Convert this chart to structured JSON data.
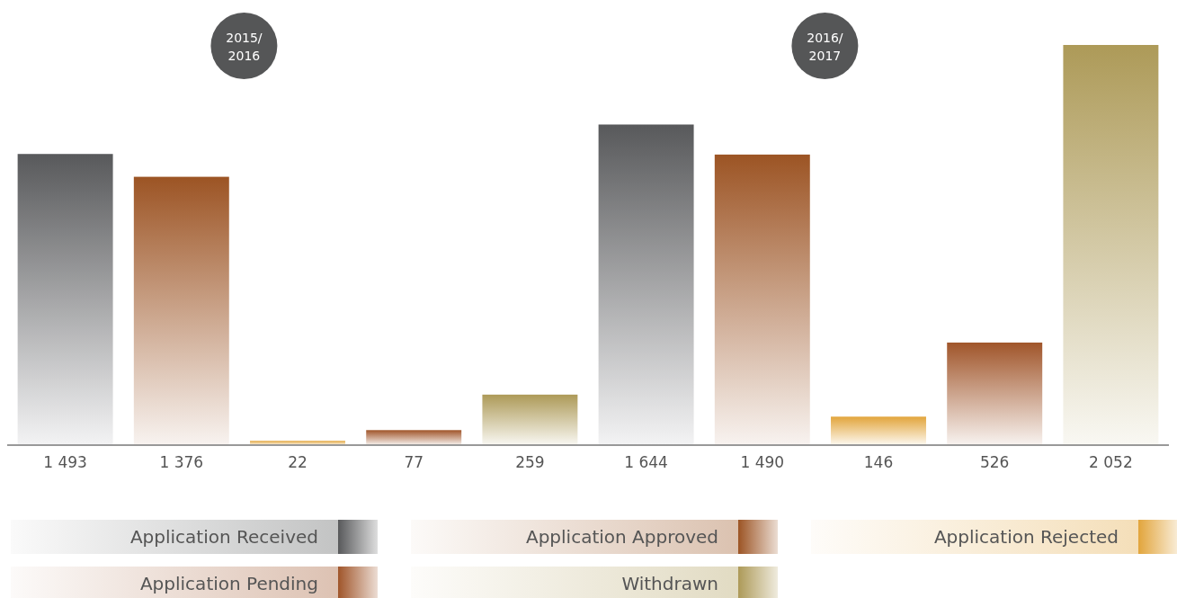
{
  "chart_data": {
    "type": "bar",
    "categories": [
      "2015/\n2016",
      "2016/\n2017"
    ],
    "series": [
      {
        "name": "Application Received",
        "color": "#58595b",
        "values": [
          1493,
          1644
        ],
        "value_labels": [
          "1 493",
          "1 644"
        ]
      },
      {
        "name": "Application Approved",
        "color": "#9c5424",
        "values": [
          1376,
          1490
        ],
        "value_labels": [
          "1 376",
          "1 490"
        ]
      },
      {
        "name": "Application Rejected",
        "color": "#e2a53c",
        "values": [
          22,
          146
        ],
        "value_labels": [
          "22",
          "146"
        ]
      },
      {
        "name": "Application Pending",
        "color": "#a0552a",
        "values": [
          77,
          526
        ],
        "value_labels": [
          "77",
          "526"
        ]
      },
      {
        "name": "Withdrawn",
        "color": "#ad9a58",
        "values": [
          259,
          2052
        ],
        "value_labels": [
          "259",
          "2 052"
        ]
      }
    ],
    "legend": "bottom"
  }
}
